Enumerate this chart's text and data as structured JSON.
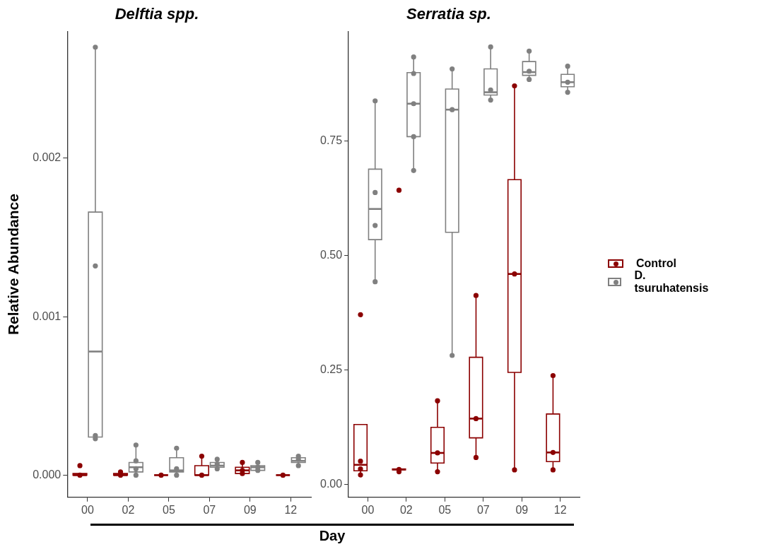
{
  "chart_data": [
    {
      "type": "box",
      "title": "Delftia spp.",
      "ylabel": "Relative Abundance",
      "xlabel": "Day",
      "categories": [
        "00",
        "02",
        "05",
        "07",
        "09",
        "12"
      ],
      "ylim": [
        -0.00014,
        0.0028
      ],
      "yticks": [
        {
          "value": 0,
          "label": "0.000"
        },
        {
          "value": 0.001,
          "label": "0.001"
        },
        {
          "value": 0.002,
          "label": "0.002"
        }
      ],
      "grid": false,
      "series": [
        {
          "color": "#8b0000",
          "type": "box",
          "boxes": [
            {
              "low": 0,
              "q1": 0,
              "median": 0,
              "q3": 1e-05,
              "high": 1e-05
            },
            {
              "low": 0,
              "q1": 0,
              "median": 0,
              "q3": 1e-05,
              "high": 2e-05
            },
            {
              "low": 0,
              "q1": 0,
              "median": 0,
              "q3": 0,
              "high": 0
            },
            {
              "low": 0,
              "q1": 0,
              "median": 0,
              "q3": 6e-05,
              "high": 0.00012
            },
            {
              "low": 1e-05,
              "q1": 1e-05,
              "median": 3e-05,
              "q3": 5e-05,
              "high": 8e-05
            },
            {
              "low": 0,
              "q1": 0,
              "median": 0,
              "q3": 0,
              "high": 0
            }
          ]
        },
        {
          "color": "#808080",
          "type": "box",
          "boxes": [
            {
              "low": 0.00023,
              "q1": 0.00024,
              "median": 0.00078,
              "q3": 0.00166,
              "high": 0.0027
            },
            {
              "low": 0,
              "q1": 2e-05,
              "median": 5e-05,
              "q3": 8e-05,
              "high": 0.00019
            },
            {
              "low": 0,
              "q1": 2e-05,
              "median": 3e-05,
              "q3": 0.00011,
              "high": 0.00017
            },
            {
              "low": 4e-05,
              "q1": 5e-05,
              "median": 6e-05,
              "q3": 8e-05,
              "high": 0.0001
            },
            {
              "low": 3e-05,
              "q1": 3e-05,
              "median": 5e-05,
              "q3": 6e-05,
              "high": 8e-05
            },
            {
              "low": 6e-05,
              "q1": 8e-05,
              "median": 9e-05,
              "q3": 0.00011,
              "high": 0.00012
            }
          ]
        },
        {
          "type": "scatter",
          "color": "#8b0000",
          "marker": "circle",
          "x": [
            "00",
            "00",
            "02",
            "02",
            "05",
            "07",
            "07",
            "09",
            "09",
            "09",
            "12"
          ],
          "values": [
            0,
            6e-05,
            0,
            2e-05,
            0,
            0,
            0.00012,
            1e-05,
            3e-05,
            8e-05,
            0
          ]
        },
        {
          "type": "scatter",
          "color": "#808080",
          "marker": "circle",
          "x": [
            "00",
            "00",
            "00",
            "00",
            "02",
            "02",
            "02",
            "02",
            "05",
            "05",
            "05",
            "07",
            "07",
            "07",
            "09",
            "09",
            "09",
            "12",
            "12",
            "12"
          ],
          "values": [
            0.00023,
            0.00025,
            0.00132,
            0.0027,
            0,
            4e-05,
            9e-05,
            0.00019,
            0,
            4e-05,
            0.00017,
            4e-05,
            7e-05,
            0.0001,
            3e-05,
            5e-05,
            8e-05,
            6e-05,
            0.0001,
            0.00012
          ]
        }
      ]
    },
    {
      "type": "box",
      "title": "Serratia sp.",
      "categories": [
        "00",
        "02",
        "05",
        "07",
        "09",
        "12"
      ],
      "ylim": [
        -0.028,
        0.99
      ],
      "yticks": [
        {
          "value": 0,
          "label": "0.00"
        },
        {
          "value": 0.25,
          "label": "0.25"
        },
        {
          "value": 0.5,
          "label": "0.50"
        },
        {
          "value": 0.75,
          "label": "0.75"
        }
      ],
      "grid": false,
      "legend": "right",
      "series": [
        {
          "name": "Control",
          "color": "#8b0000",
          "type": "box",
          "boxes": [
            {
              "low": 0.021,
              "q1": 0.03,
              "median": 0.043,
              "q3": 0.131,
              "high": 0.131
            },
            {
              "low": 0.032,
              "q1": 0.032,
              "median": 0.033,
              "q3": 0.034,
              "high": 0.034
            },
            {
              "low": 0.028,
              "q1": 0.047,
              "median": 0.069,
              "q3": 0.125,
              "high": 0.183
            },
            {
              "low": 0.059,
              "q1": 0.102,
              "median": 0.144,
              "q3": 0.278,
              "high": 0.413
            },
            {
              "low": 0.032,
              "q1": 0.245,
              "median": 0.46,
              "q3": 0.666,
              "high": 0.871
            },
            {
              "low": 0.032,
              "q1": 0.05,
              "median": 0.07,
              "q3": 0.154,
              "high": 0.238
            }
          ]
        },
        {
          "name": "D. tsuruhatensis",
          "color": "#808080",
          "type": "box",
          "boxes": [
            {
              "low": 0.443,
              "q1": 0.535,
              "median": 0.602,
              "q3": 0.689,
              "high": 0.838
            },
            {
              "low": 0.686,
              "q1": 0.76,
              "median": 0.832,
              "q3": 0.9,
              "high": 0.934
            },
            {
              "low": 0.282,
              "q1": 0.551,
              "median": 0.819,
              "q3": 0.864,
              "high": 0.908
            },
            {
              "low": 0.84,
              "q1": 0.851,
              "median": 0.857,
              "q3": 0.908,
              "high": 0.956
            },
            {
              "low": 0.885,
              "q1": 0.894,
              "median": 0.901,
              "q3": 0.924,
              "high": 0.947
            },
            {
              "low": 0.857,
              "q1": 0.869,
              "median": 0.879,
              "q3": 0.896,
              "high": 0.914
            }
          ]
        },
        {
          "type": "scatter",
          "color": "#8b0000",
          "marker": "circle",
          "x": [
            "00",
            "00",
            "00",
            "00",
            "02",
            "02",
            "02",
            "05",
            "05",
            "05",
            "07",
            "07",
            "07",
            "09",
            "09",
            "09",
            "12",
            "12",
            "12"
          ],
          "values": [
            0.021,
            0.034,
            0.051,
            0.371,
            0.028,
            0.033,
            0.643,
            0.028,
            0.069,
            0.183,
            0.059,
            0.144,
            0.413,
            0.032,
            0.46,
            0.871,
            0.032,
            0.07,
            0.238
          ]
        },
        {
          "type": "scatter",
          "color": "#808080",
          "marker": "circle",
          "x": [
            "00",
            "00",
            "00",
            "00",
            "02",
            "02",
            "02",
            "02",
            "02",
            "05",
            "05",
            "05",
            "07",
            "07",
            "07",
            "09",
            "09",
            "09",
            "12",
            "12",
            "12"
          ],
          "values": [
            0.443,
            0.566,
            0.638,
            0.838,
            0.686,
            0.76,
            0.832,
            0.898,
            0.934,
            0.282,
            0.819,
            0.908,
            0.84,
            0.862,
            0.956,
            0.885,
            0.903,
            0.947,
            0.857,
            0.879,
            0.914
          ]
        }
      ]
    }
  ]
}
